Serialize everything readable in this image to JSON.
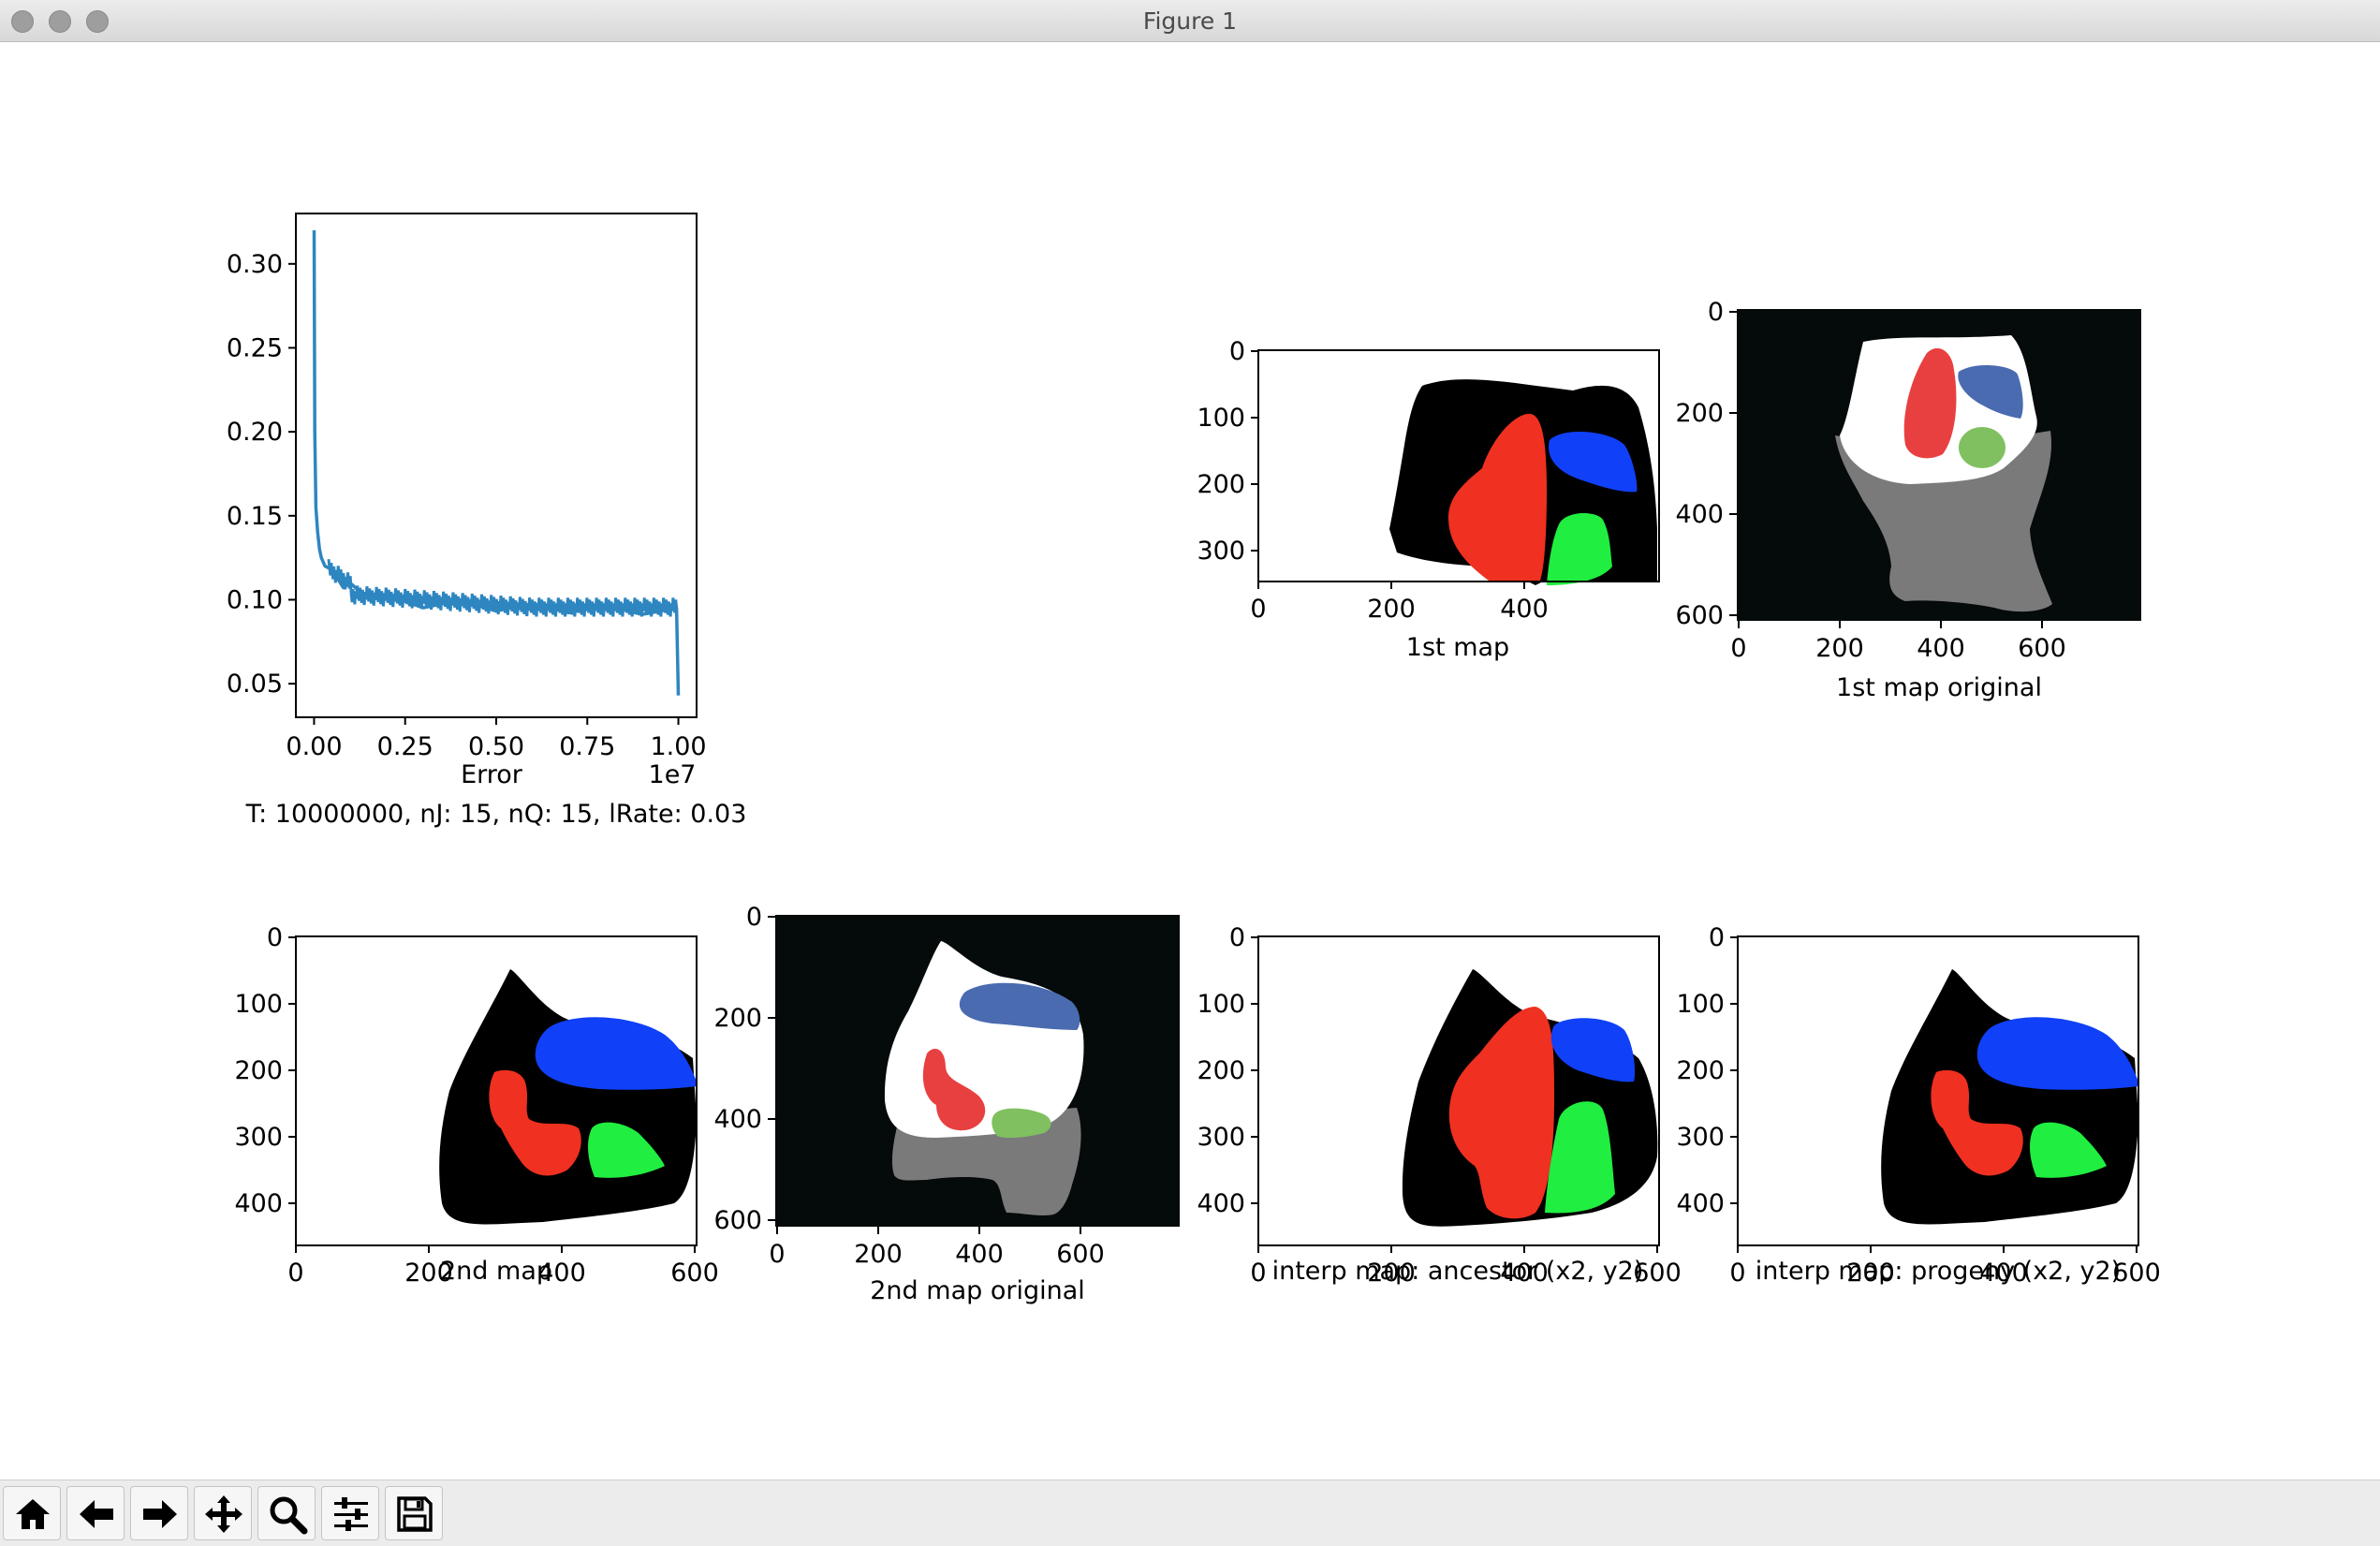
{
  "window": {
    "title": "Figure 1"
  },
  "toolbar": {
    "buttons": [
      {
        "name": "home-button",
        "icon": "home-icon"
      },
      {
        "name": "back-button",
        "icon": "arrow-left-icon"
      },
      {
        "name": "forward-button",
        "icon": "arrow-right-icon"
      },
      {
        "name": "pan-button",
        "icon": "move-icon"
      },
      {
        "name": "zoom-button",
        "icon": "magnifier-icon"
      },
      {
        "name": "configure-subplots-button",
        "icon": "sliders-icon"
      },
      {
        "name": "save-button",
        "icon": "floppy-disk-icon"
      }
    ]
  },
  "chart_data": [
    {
      "type": "line",
      "xlabel": "Error",
      "x_offset_label": "1e7",
      "caption": "T: 10000000, nJ: 15, nQ: 15, lRate: 0.03",
      "xlim": [
        -0.05,
        1.05
      ],
      "ylim": [
        0.03,
        0.33
      ],
      "x_ticks": [
        "0.00",
        "0.25",
        "0.50",
        "0.75",
        "1.00"
      ],
      "y_ticks": [
        "0.05",
        "0.10",
        "0.15",
        "0.20",
        "0.25",
        "0.30"
      ],
      "color": "#2e86c1",
      "series": [
        {
          "x": [
            0,
            0.002,
            0.005,
            0.01,
            0.015,
            0.02,
            0.03,
            0.05,
            0.08,
            0.1,
            0.15,
            0.2,
            0.3,
            0.4,
            0.5,
            0.6,
            0.7,
            0.8,
            0.9,
            0.995,
            1.0
          ],
          "y": [
            0.32,
            0.2,
            0.155,
            0.14,
            0.13,
            0.125,
            0.12,
            0.115,
            0.11,
            0.107,
            0.103,
            0.1,
            0.098,
            0.097,
            0.096,
            0.095,
            0.095,
            0.094,
            0.094,
            0.095,
            0.043
          ]
        }
      ]
    },
    {
      "type": "image",
      "xlabel": "1st map",
      "x_ticks": [
        "0",
        "200",
        "400"
      ],
      "y_ticks": [
        "0",
        "100",
        "200",
        "300"
      ],
      "colors": [
        "#000000",
        "#ffffff",
        "#f03020",
        "#1040f8",
        "#20ee40"
      ]
    },
    {
      "type": "image",
      "xlabel": "1st map original",
      "x_ticks": [
        "0",
        "200",
        "400",
        "600"
      ],
      "y_ticks": [
        "0",
        "200",
        "400",
        "600"
      ],
      "colors": [
        "#050a0a",
        "#ffffff",
        "#7a7a7a",
        "#e84040",
        "#4a6bb0",
        "#80c060"
      ]
    },
    {
      "type": "image",
      "xlabel": "2nd map",
      "x_ticks": [
        "0",
        "200",
        "400",
        "600"
      ],
      "y_ticks": [
        "0",
        "100",
        "200",
        "300",
        "400"
      ]
    },
    {
      "type": "image",
      "xlabel": "2nd map original",
      "x_ticks": [
        "0",
        "200",
        "400",
        "600"
      ],
      "y_ticks": [
        "0",
        "200",
        "400",
        "600"
      ]
    },
    {
      "type": "image",
      "xlabel": "interp map: ancestor (x2, y2)",
      "x_ticks": [
        "0",
        "200",
        "400",
        "600"
      ],
      "y_ticks": [
        "0",
        "100",
        "200",
        "300",
        "400"
      ]
    },
    {
      "type": "image",
      "xlabel": "interp map: progeny (x2, y2)",
      "x_ticks": [
        "0",
        "200",
        "400",
        "600"
      ],
      "y_ticks": [
        "0",
        "100",
        "200",
        "300",
        "400"
      ]
    }
  ]
}
